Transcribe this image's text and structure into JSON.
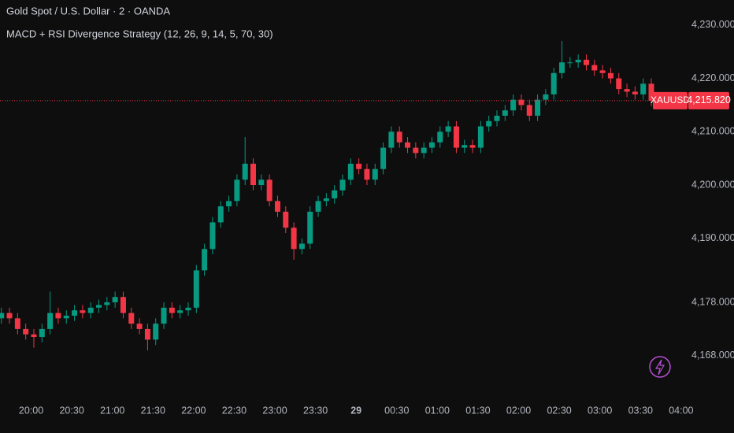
{
  "chart_data": {
    "type": "candlestick",
    "title": "Gold Spot / U.S. Dollar · 2 · OANDA",
    "subtitle": "MACD + RSI Divergence Strategy (12, 26, 9, 14, 5, 70, 30)",
    "symbol": "XAUUSD",
    "last_price": {
      "value": 4215.82,
      "label": "4,215.820"
    },
    "up_color": "#089981",
    "down_color": "#f23645",
    "x": [
      "19:38",
      "19:44",
      "19:50",
      "19:56",
      "20:02",
      "20:08",
      "20:14",
      "20:20",
      "20:26",
      "20:32",
      "20:38",
      "20:44",
      "20:50",
      "20:56",
      "21:02",
      "21:08",
      "21:14",
      "21:20",
      "21:26",
      "21:32",
      "21:38",
      "21:44",
      "21:50",
      "21:56",
      "22:02",
      "22:08",
      "22:14",
      "22:20",
      "22:26",
      "22:32",
      "22:38",
      "22:44",
      "22:50",
      "22:56",
      "23:02",
      "23:08",
      "23:14",
      "23:20",
      "23:26",
      "23:32",
      "23:38",
      "23:44",
      "23:50",
      "23:56",
      "00:02",
      "00:08",
      "00:14",
      "00:20",
      "00:26",
      "00:32",
      "00:38",
      "00:44",
      "00:50",
      "00:56",
      "01:02",
      "01:08",
      "01:14",
      "01:20",
      "01:26",
      "01:32",
      "01:38",
      "01:44",
      "01:50",
      "01:56",
      "02:02",
      "02:08",
      "02:14",
      "02:20",
      "02:26",
      "02:32",
      "02:38",
      "02:44",
      "02:50",
      "02:56",
      "03:02",
      "03:08",
      "03:14",
      "03:20",
      "03:26",
      "03:32",
      "03:38"
    ],
    "open": [
      4175,
      4176,
      4175,
      4173,
      4172,
      4171.5,
      4173,
      4176,
      4175,
      4175.5,
      4176.5,
      4176,
      4177,
      4177.5,
      4178,
      4179,
      4176,
      4174,
      4173,
      4171,
      4174,
      4177,
      4176,
      4176.5,
      4177,
      4184,
      4188,
      4193,
      4196,
      4197,
      4201,
      4204,
      4200,
      4201,
      4197,
      4195,
      4192,
      4188,
      4189,
      4195,
      4197,
      4197.5,
      4199,
      4201,
      4204,
      4203,
      4201,
      4203,
      4207,
      4210,
      4208,
      4207,
      4206,
      4207,
      4208,
      4210,
      4211,
      4207,
      4207.5,
      4207,
      4211,
      4212,
      4213,
      4214,
      4216,
      4215,
      4213,
      4216,
      4217,
      4221,
      4223,
      4223,
      4223.5,
      4222.5,
      4221.5,
      4221,
      4220,
      4218,
      4217.5,
      4217,
      4219
    ],
    "high": [
      4177,
      4177,
      4176,
      4174,
      4173,
      4174,
      4180,
      4177,
      4176.5,
      4177.5,
      4177.5,
      4178,
      4178.5,
      4179,
      4180,
      4180,
      4177,
      4175,
      4174,
      4175,
      4178,
      4178,
      4177.5,
      4178,
      4185,
      4189,
      4194,
      4197,
      4198,
      4202,
      4209,
      4205,
      4202,
      4202,
      4198,
      4196,
      4193,
      4190,
      4196,
      4198,
      4198.5,
      4200,
      4202,
      4205,
      4205,
      4204,
      4204,
      4208,
      4211,
      4211,
      4209,
      4208,
      4208,
      4209,
      4211,
      4212,
      4212,
      4208.5,
      4208.5,
      4212,
      4213,
      4214,
      4215,
      4217,
      4217,
      4216,
      4217,
      4218,
      4222,
      4227,
      4224,
      4224.5,
      4224.5,
      4223.5,
      4222.5,
      4222,
      4221,
      4219,
      4218.5,
      4220,
      4220
    ],
    "low": [
      4174,
      4174,
      4172,
      4171,
      4169.5,
      4170.5,
      4172,
      4174,
      4174,
      4174.5,
      4175,
      4175,
      4176,
      4176.5,
      4177,
      4175,
      4173,
      4172,
      4169,
      4170,
      4173,
      4175,
      4175,
      4175.5,
      4176,
      4183,
      4187,
      4192,
      4195,
      4196,
      4200,
      4199,
      4199,
      4196,
      4194,
      4191,
      4186,
      4187,
      4188,
      4194,
      4196,
      4196.5,
      4198,
      4200,
      4202,
      4200,
      4200,
      4202,
      4206,
      4207,
      4206,
      4205,
      4205,
      4206,
      4207,
      4209,
      4206,
      4206,
      4206,
      4206,
      4210,
      4211,
      4212,
      4213,
      4214,
      4212,
      4212,
      4215,
      4216,
      4220,
      4222,
      4222,
      4221.5,
      4220.5,
      4220,
      4219,
      4217,
      4216.5,
      4216,
      4216,
      4214.8
    ],
    "close": [
      4176,
      4175,
      4173,
      4172,
      4171.5,
      4173,
      4176,
      4175,
      4175.5,
      4176.5,
      4176,
      4177,
      4177.5,
      4178,
      4179,
      4176,
      4174,
      4173,
      4171,
      4174,
      4177,
      4176,
      4176.5,
      4177,
      4184,
      4188,
      4193,
      4196,
      4197,
      4201,
      4204,
      4200,
      4201,
      4197,
      4195,
      4192,
      4188,
      4189,
      4195,
      4197,
      4197.5,
      4199,
      4201,
      4204,
      4203,
      4201,
      4203,
      4207,
      4210,
      4208,
      4207,
      4206,
      4207,
      4208,
      4210,
      4211,
      4207,
      4207.5,
      4207,
      4211,
      4212,
      4213,
      4214,
      4216,
      4215,
      4213,
      4216,
      4217,
      4221,
      4223,
      4223,
      4223.5,
      4222.5,
      4221.5,
      4221,
      4220,
      4218,
      4217.5,
      4217,
      4219,
      4215.8
    ],
    "xlim": [
      "19:37",
      "04:03"
    ],
    "xticks": [
      "20:00",
      "20:30",
      "21:00",
      "21:30",
      "22:00",
      "22:30",
      "23:00",
      "23:30",
      {
        "value": "00:00",
        "label": "29"
      },
      "00:30",
      "01:00",
      "01:30",
      "02:00",
      "02:30",
      "03:00",
      "03:30",
      "04:00"
    ],
    "ylim": [
      4159.4,
      4234.7
    ],
    "yticks": [
      {
        "value": 4230,
        "label": "4,230.000"
      },
      {
        "value": 4220,
        "label": "4,220.000"
      },
      {
        "value": 4210,
        "label": "4,210.000"
      },
      {
        "value": 4200,
        "label": "4,200.000"
      },
      {
        "value": 4190,
        "label": "4,190.000"
      },
      {
        "value": 4178,
        "label": "4,178.000"
      },
      {
        "value": 4168,
        "label": "4,168.000"
      }
    ]
  }
}
